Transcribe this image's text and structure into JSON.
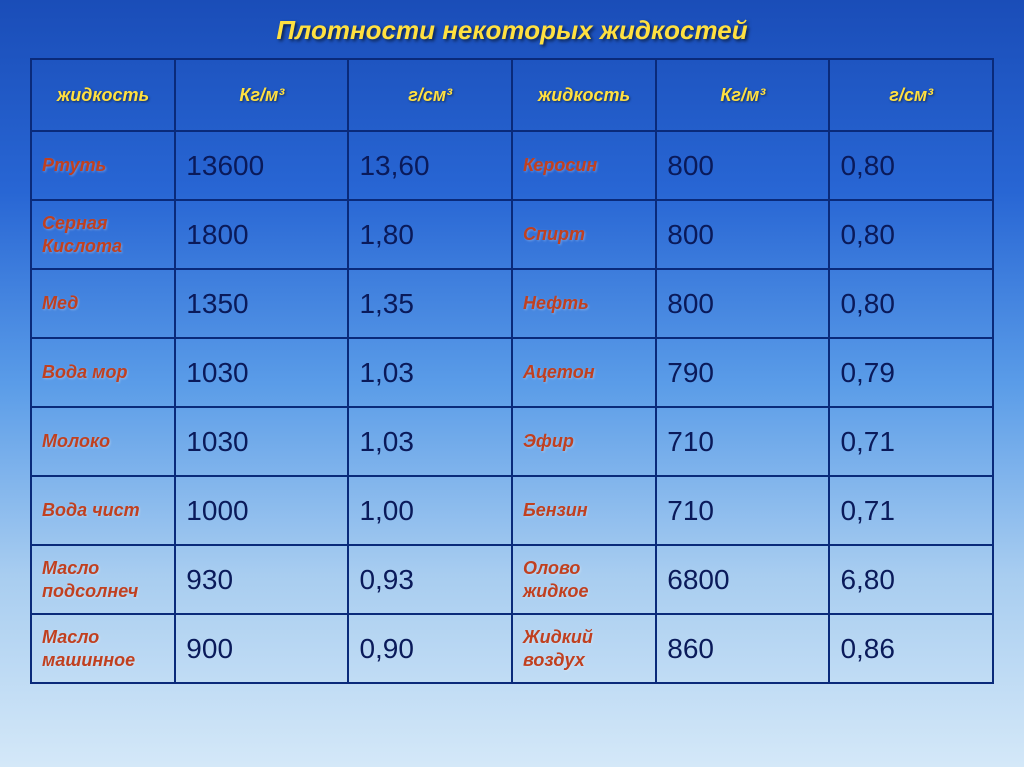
{
  "title": "Плотности некоторых жидкостей",
  "headers": {
    "liquid": "жидкость",
    "kgm3": "Кг/м³",
    "gcm3": "г/см³"
  },
  "rows": [
    {
      "left_label": "Ртуть",
      "left_kgm3": "13600",
      "left_gcm3": "13,60",
      "right_label": "Керосин",
      "right_kgm3": "800",
      "right_gcm3": "0,80"
    },
    {
      "left_label": "Серная Кислота",
      "left_kgm3": "1800",
      "left_gcm3": "1,80",
      "right_label": "Спирт",
      "right_kgm3": "800",
      "right_gcm3": "0,80"
    },
    {
      "left_label": "Мед",
      "left_kgm3": "1350",
      "left_gcm3": "1,35",
      "right_label": "Нефть",
      "right_kgm3": "800",
      "right_gcm3": "0,80"
    },
    {
      "left_label": "Вода мор",
      "left_kgm3": "1030",
      "left_gcm3": "1,03",
      "right_label": "Ацетон",
      "right_kgm3": "790",
      "right_gcm3": "0,79"
    },
    {
      "left_label": "Молоко",
      "left_kgm3": "1030",
      "left_gcm3": "1,03",
      "right_label": "Эфир",
      "right_kgm3": "710",
      "right_gcm3": "0,71"
    },
    {
      "left_label": "Вода чист",
      "left_kgm3": "1000",
      "left_gcm3": "1,00",
      "right_label": "Бензин",
      "right_kgm3": "710",
      "right_gcm3": "0,71"
    },
    {
      "left_label": "Масло подсолнеч",
      "left_kgm3": "930",
      "left_gcm3": "0,93",
      "right_label": "Олово жидкое",
      "right_kgm3": "6800",
      "right_gcm3": "6,80"
    },
    {
      "left_label": "Масло машинное",
      "left_kgm3": "900",
      "left_gcm3": "0,90",
      "right_label": "Жидкий воздух",
      "right_kgm3": "860",
      "right_gcm3": "0,86"
    }
  ],
  "style": {
    "title_color": "#ffe040",
    "header_color": "#ffe040",
    "label_color": "#c04020",
    "value_color": "#0a1a5a",
    "border_color": "#0a2a7a",
    "title_fontsize": 26,
    "header_fontsize": 18,
    "label_fontsize": 18,
    "value_fontsize": 28,
    "background_gradient": [
      "#1a4db8",
      "#2866d4",
      "#5a9ce8",
      "#a8cdf0",
      "#d4e8f8"
    ]
  }
}
